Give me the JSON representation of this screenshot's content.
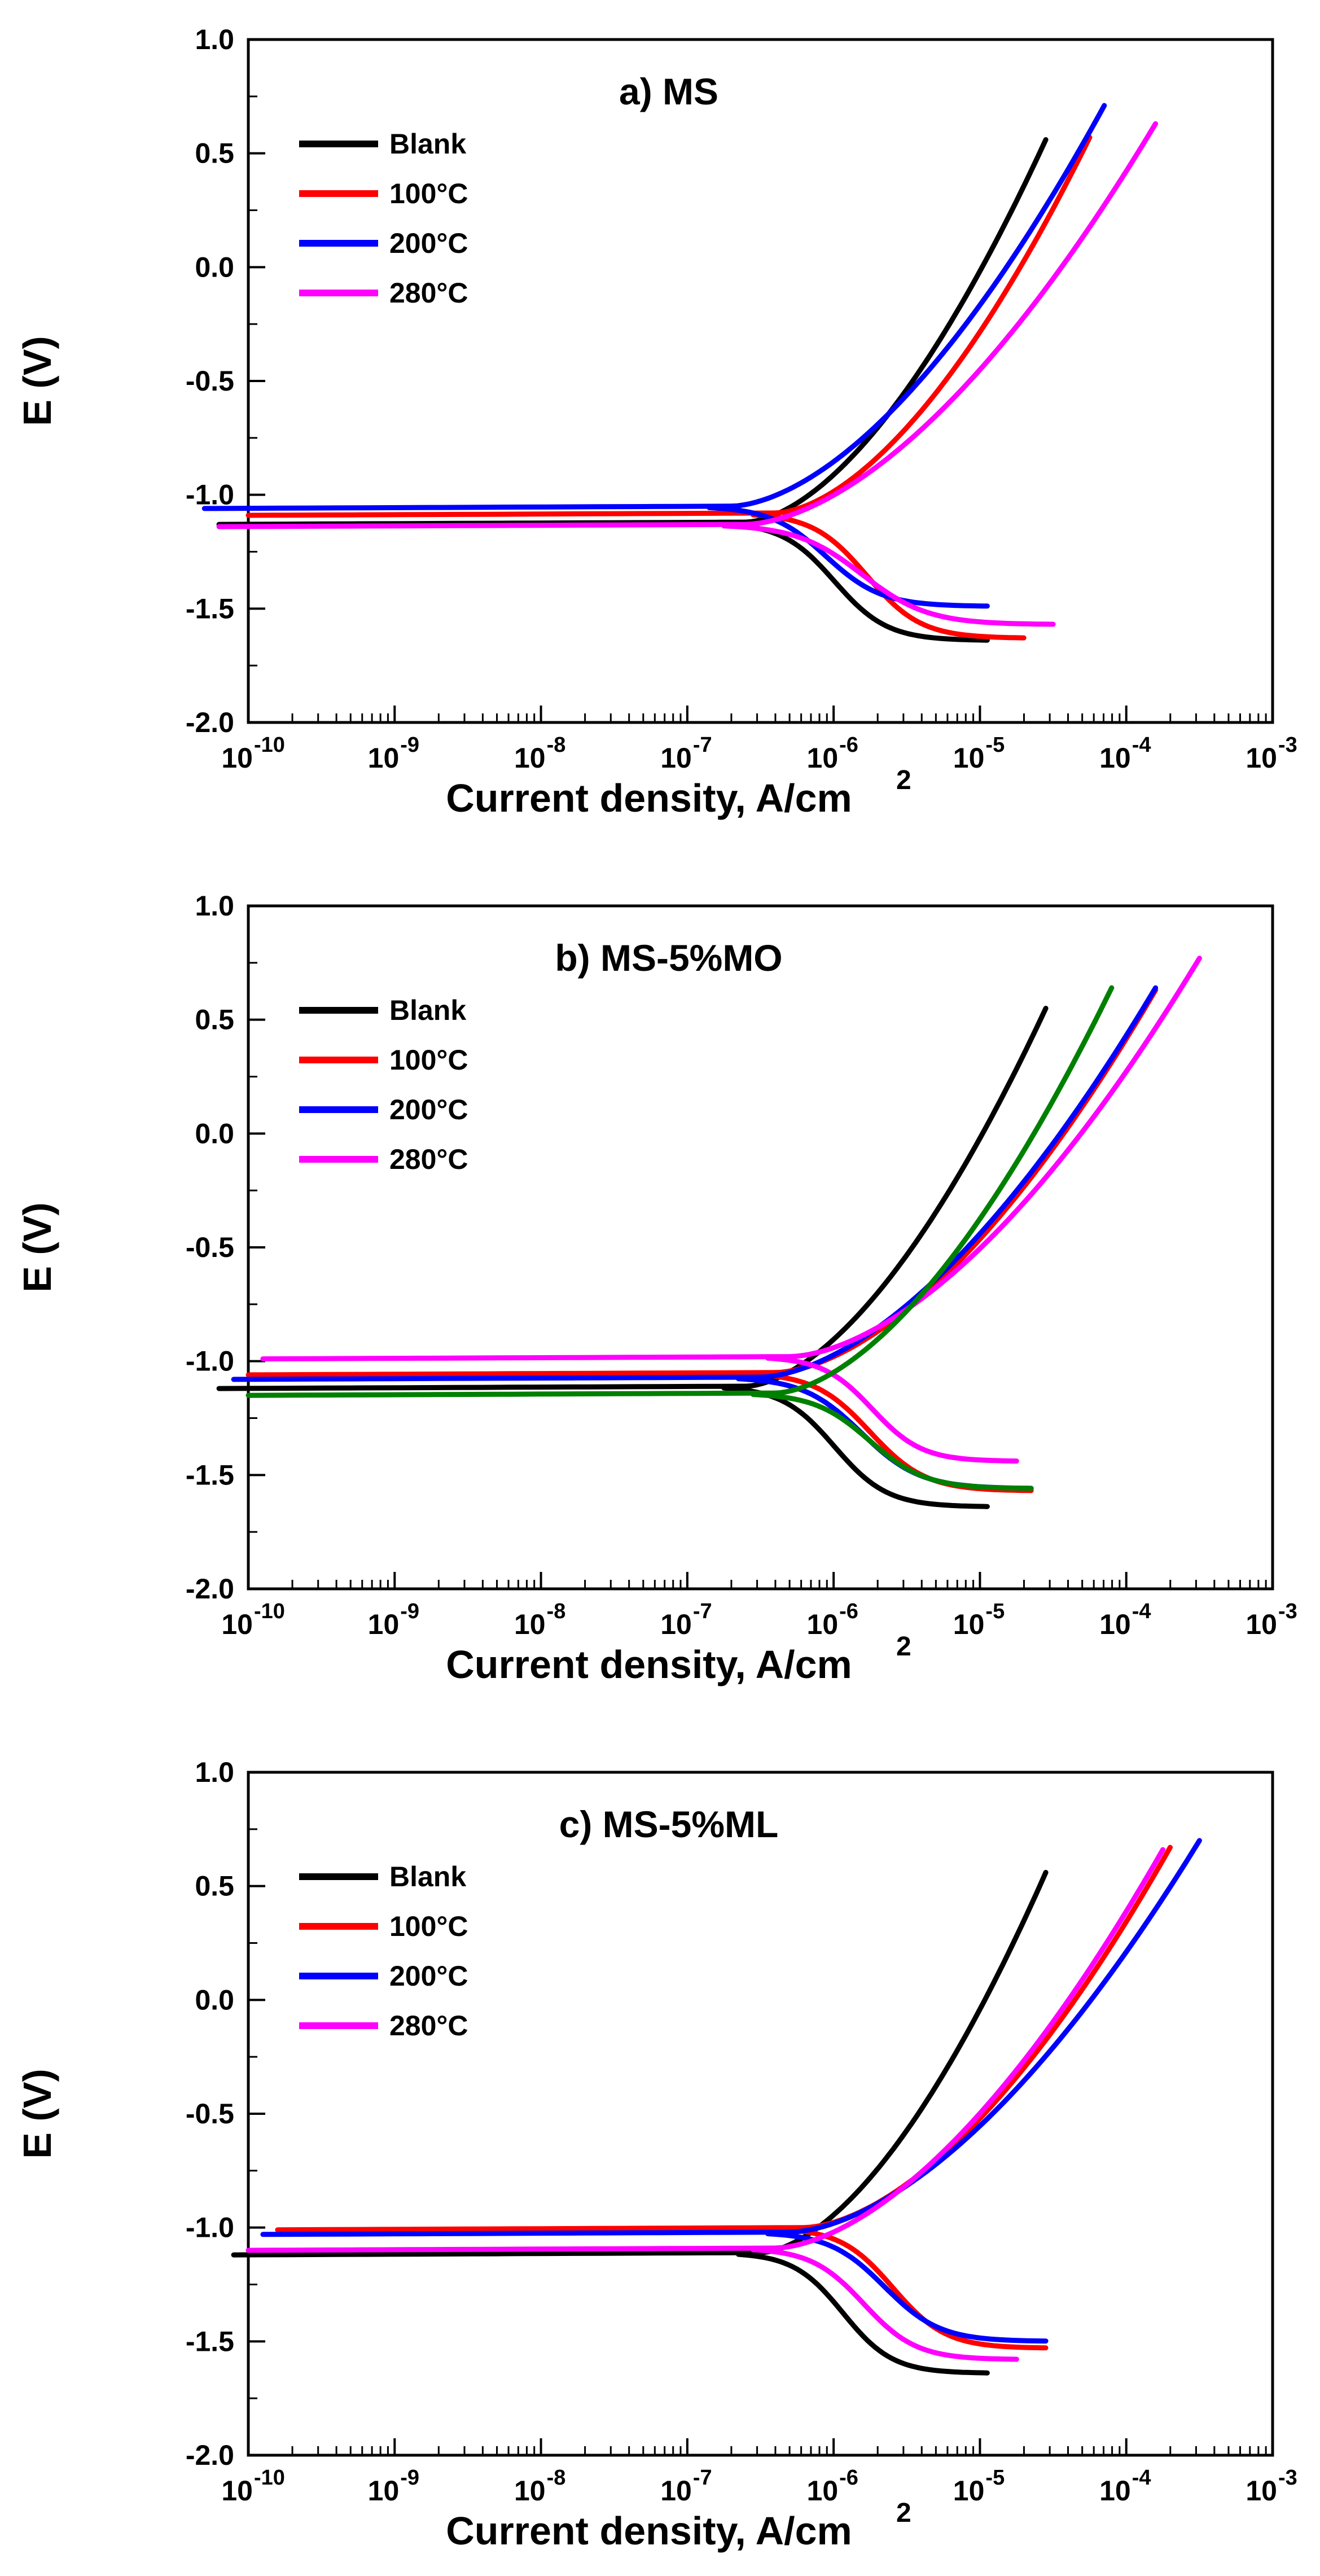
{
  "chart_data": [
    {
      "type": "line",
      "title": "a) MS",
      "xlabel": "Current density, A/cm",
      "xlabel_sup": "2",
      "ylabel": "E (V)",
      "xscale": "log",
      "xlim_exp": [
        -10,
        -3
      ],
      "ylim": [
        -2.0,
        1.0
      ],
      "x_tick_base": "10",
      "x_tick_exponents": [
        "-10",
        "-9",
        "-8",
        "-7",
        "-6",
        "-5",
        "-4",
        "-3"
      ],
      "y_tick_labels": [
        "1.0",
        "0.5",
        "0.0",
        "-0.5",
        "-1.0",
        "-1.5",
        "-2.0"
      ],
      "legend_position": "top-left",
      "series": [
        {
          "name": "Blank",
          "color": "#000000",
          "ecorr": -1.12,
          "icorr_exp": -6.6,
          "anodic_end": [
            -4.55,
            0.56
          ],
          "cathodic_end": [
            -4.95,
            -1.64
          ]
        },
        {
          "name": "100°C",
          "color": "#ff0000",
          "ecorr": -1.08,
          "icorr_exp": -6.4,
          "anodic_end": [
            -4.25,
            0.57
          ],
          "cathodic_end": [
            -4.7,
            -1.63
          ]
        },
        {
          "name": "200°C",
          "color": "#0000ff",
          "ecorr": -1.05,
          "icorr_exp": -6.7,
          "anodic_end": [
            -4.15,
            0.71
          ],
          "cathodic_end": [
            -4.95,
            -1.49
          ]
        },
        {
          "name": "280°C",
          "color": "#ff00ff",
          "ecorr": -1.13,
          "icorr_exp": -6.6,
          "anodic_end": [
            -3.8,
            0.63
          ],
          "cathodic_end": [
            -4.5,
            -1.57
          ]
        }
      ]
    },
    {
      "type": "line",
      "title": "b) MS-5%MO",
      "xlabel": "Current density, A/cm",
      "xlabel_sup": "2",
      "ylabel": "E (V)",
      "xscale": "log",
      "xlim_exp": [
        -10,
        -3
      ],
      "ylim": [
        -2.0,
        1.0
      ],
      "x_tick_base": "10",
      "x_tick_exponents": [
        "-10",
        "-9",
        "-8",
        "-7",
        "-6",
        "-5",
        "-4",
        "-3"
      ],
      "y_tick_labels": [
        "1.0",
        "0.5",
        "0.0",
        "-0.5",
        "-1.0",
        "-1.5",
        "-2.0"
      ],
      "legend_position": "top-left",
      "series": [
        {
          "name": "Blank",
          "color": "#000000",
          "ecorr": -1.11,
          "icorr_exp": -6.6,
          "anodic_end": [
            -4.55,
            0.55
          ],
          "cathodic_end": [
            -4.95,
            -1.64
          ]
        },
        {
          "name": "100°C",
          "color": "#ff0000",
          "ecorr": -1.05,
          "icorr_exp": -6.4,
          "anodic_end": [
            -3.8,
            0.63
          ],
          "cathodic_end": [
            -4.65,
            -1.57
          ]
        },
        {
          "name": "200°C",
          "color": "#0000ff",
          "ecorr": -1.07,
          "icorr_exp": -6.5,
          "anodic_end": [
            -3.8,
            0.64
          ],
          "cathodic_end": [
            -4.65,
            -1.56
          ]
        },
        {
          "name": "280°C",
          "color": "#ff00ff",
          "ecorr": -0.98,
          "icorr_exp": -6.3,
          "anodic_end": [
            -3.5,
            0.77
          ],
          "cathodic_end": [
            -4.75,
            -1.44
          ]
        },
        {
          "name": "",
          "color": "#008000",
          "ecorr": -1.14,
          "icorr_exp": -6.4,
          "anodic_end": [
            -4.1,
            0.64
          ],
          "cathodic_end": [
            -4.65,
            -1.56
          ]
        }
      ]
    },
    {
      "type": "line",
      "title": "c) MS-5%ML",
      "xlabel": "Current density, A/cm",
      "xlabel_sup": "2",
      "ylabel": "E (V)",
      "xscale": "log",
      "xlim_exp": [
        -10,
        -3
      ],
      "ylim": [
        -2.0,
        1.0
      ],
      "x_tick_base": "10",
      "x_tick_exponents": [
        "-10",
        "-9",
        "-8",
        "-7",
        "-6",
        "-5",
        "-4",
        "-3"
      ],
      "y_tick_labels": [
        "1.0",
        "0.5",
        "0.0",
        "-0.5",
        "-1.0",
        "-1.5",
        "-2.0"
      ],
      "legend_position": "top-left",
      "series": [
        {
          "name": "Blank",
          "color": "#000000",
          "ecorr": -1.11,
          "icorr_exp": -6.5,
          "anodic_end": [
            -4.55,
            0.56
          ],
          "cathodic_end": [
            -4.95,
            -1.64
          ]
        },
        {
          "name": "100°C",
          "color": "#ff0000",
          "ecorr": -1.0,
          "icorr_exp": -6.2,
          "anodic_end": [
            -3.7,
            0.67
          ],
          "cathodic_end": [
            -4.55,
            -1.53
          ]
        },
        {
          "name": "200°C",
          "color": "#0000ff",
          "ecorr": -1.02,
          "icorr_exp": -6.3,
          "anodic_end": [
            -3.5,
            0.7
          ],
          "cathodic_end": [
            -4.55,
            -1.5
          ]
        },
        {
          "name": "280°C",
          "color": "#ff00ff",
          "ecorr": -1.09,
          "icorr_exp": -6.4,
          "anodic_end": [
            -3.75,
            0.66
          ],
          "cathodic_end": [
            -4.75,
            -1.58
          ]
        }
      ]
    }
  ]
}
